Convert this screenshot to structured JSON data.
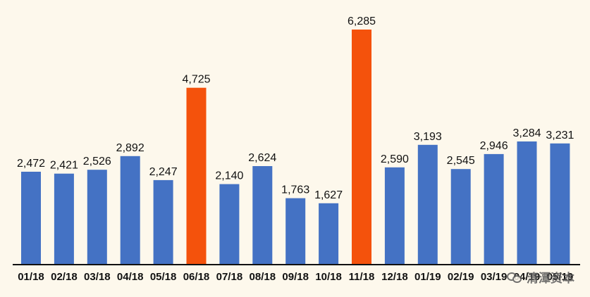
{
  "chart_data": {
    "type": "bar",
    "categories": [
      "01/18",
      "02/18",
      "03/18",
      "04/18",
      "05/18",
      "06/18",
      "07/18",
      "08/18",
      "09/18",
      "10/18",
      "11/18",
      "12/18",
      "01/19",
      "02/19",
      "03/19",
      "04/19",
      "05/19"
    ],
    "values": [
      2472,
      2421,
      2526,
      2892,
      2247,
      4725,
      2140,
      2624,
      1763,
      1627,
      6285,
      2590,
      3193,
      2545,
      2946,
      3284,
      3231
    ],
    "value_labels": [
      "2,472",
      "2,421",
      "2,526",
      "2,892",
      "2,247",
      "4,725",
      "2,140",
      "2,624",
      "1,763",
      "1,627",
      "6,285",
      "2,590",
      "3,193",
      "2,545",
      "2,946",
      "3,284",
      "3,231"
    ],
    "highlighted": [
      "06/18",
      "11/18"
    ],
    "colors": {
      "bar": "#4472c4",
      "highlight": "#f4520c",
      "axis": "#111111"
    },
    "ylim": [
      0,
      6500
    ],
    "grid": false,
    "legend": "none"
  },
  "watermark": {
    "icon": "wechat-icon",
    "text": "清潭资本"
  }
}
